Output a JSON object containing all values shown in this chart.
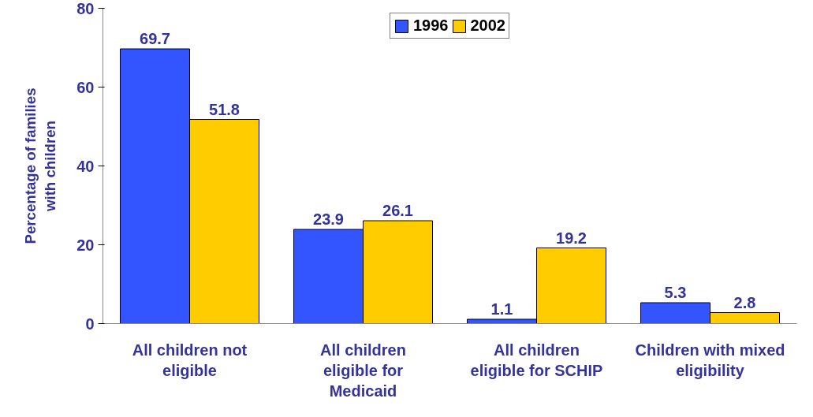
{
  "chart_data": {
    "type": "bar",
    "ylabel": "Percentage of families with children",
    "categories": [
      "All children not eligible",
      "All children eligible for Medicaid",
      "All children eligible for SCHIP",
      "Children with mixed eligibility"
    ],
    "series": [
      {
        "name": "1996",
        "color": "#3355ff",
        "values": [
          69.7,
          23.9,
          1.1,
          5.3
        ]
      },
      {
        "name": "2002",
        "color": "#ffcc00",
        "values": [
          51.8,
          26.1,
          19.2,
          2.8
        ]
      }
    ],
    "ylim": [
      0,
      80
    ],
    "yticks": [
      0,
      20,
      40,
      60,
      80
    ],
    "grid": false,
    "legend": "top",
    "data_labels": true
  }
}
